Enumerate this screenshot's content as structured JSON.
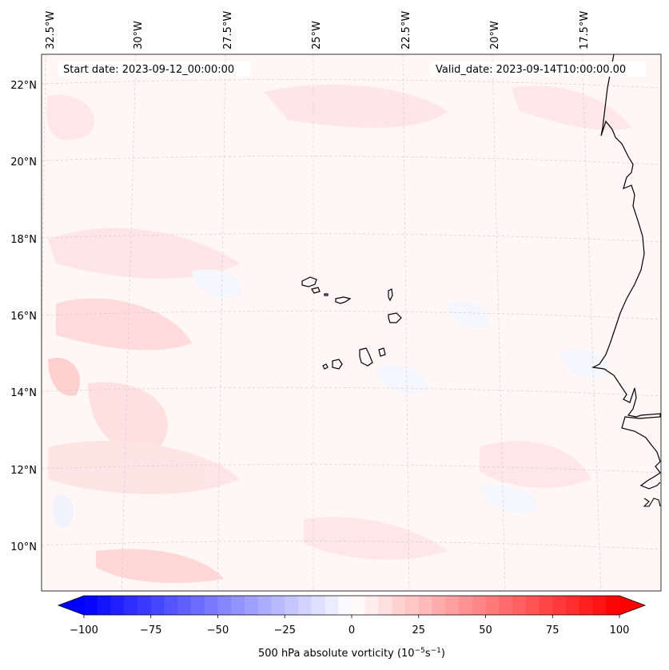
{
  "map": {
    "start_label": "Start date: 2023-09-12_00:00:00",
    "valid_label": "Valid_date: 2023-09-14T10:00:00.00",
    "lon_labels": [
      "32.5°W",
      "30°W",
      "27.5°W",
      "25°W",
      "22.5°W",
      "20°W",
      "17.5°W"
    ],
    "lat_labels": [
      "22°N",
      "20°N",
      "18°N",
      "16°N",
      "14°N",
      "12°N",
      "10°N"
    ],
    "grid": true,
    "land_outline_color": "#000000",
    "background_tint": "#fff6f6"
  },
  "colorbar": {
    "label_main": "500 hPa absolute vorticity (10",
    "label_exp1": "−5",
    "label_mid": "s",
    "label_exp2": "−1",
    "label_end": ")",
    "ticks": [
      "−100",
      "−75",
      "−50",
      "−25",
      "0",
      "25",
      "50",
      "75",
      "100"
    ],
    "min": -100,
    "max": 100,
    "levels": 40,
    "color_low": "#0000ff",
    "color_mid": "#ffffff",
    "color_high": "#ff0000"
  }
}
